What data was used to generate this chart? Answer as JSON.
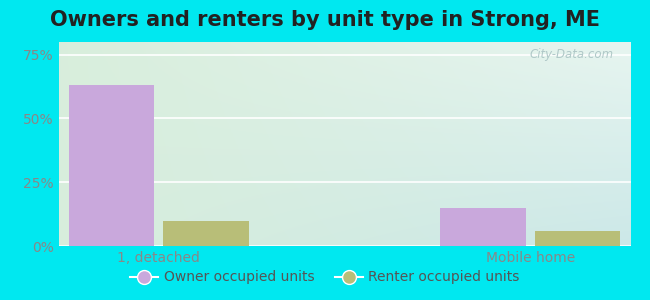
{
  "title": "Owners and renters by unit type in Strong, ME",
  "categories": [
    "1, detached",
    "Mobile home"
  ],
  "owner_values": [
    63,
    15
  ],
  "renter_values": [
    10,
    6
  ],
  "owner_color": "#c9a8dc",
  "renter_color": "#b8be78",
  "yticks": [
    0,
    25,
    50,
    75
  ],
  "ylim": [
    0,
    80
  ],
  "bar_width": 0.3,
  "legend_labels": [
    "Owner occupied units",
    "Renter occupied units"
  ],
  "watermark": "City-Data.com",
  "title_fontsize": 15,
  "tick_fontsize": 10,
  "outer_bg": "#00e8f0",
  "plot_bg_colors": [
    "#d8eedc",
    "#e8f5ee",
    "#dff0f0",
    "#cce8e8"
  ],
  "group_centers": [
    0.35,
    1.65
  ],
  "xlim": [
    0.0,
    2.0
  ],
  "grid_color": "#ffffff",
  "grid_linewidth": 1.2,
  "tick_color": "#888888",
  "label_color": "#888888"
}
